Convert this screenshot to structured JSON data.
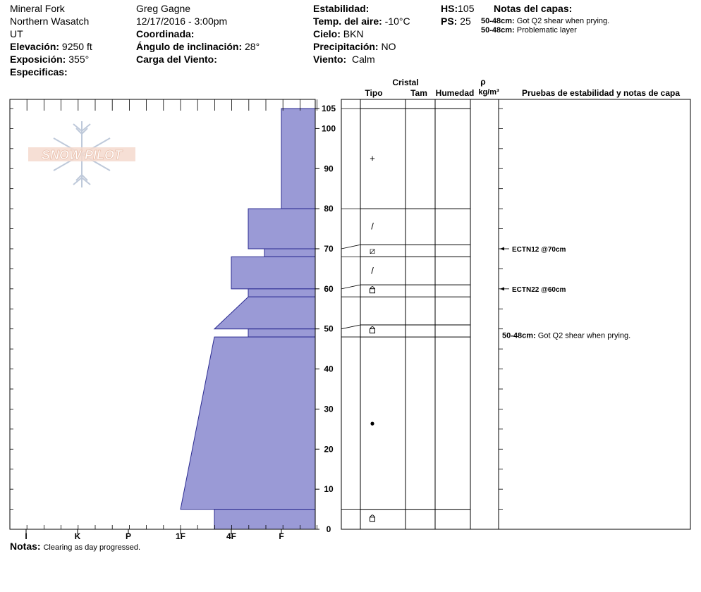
{
  "header": {
    "location": "Mineral Fork",
    "range": "Northern Wasatch",
    "state": "UT",
    "elevation_label": "Elevación:",
    "elevation_value": "9250 ft",
    "aspect_label": "Exposición:",
    "aspect_value": "355°",
    "specifics_label": "Especificas:",
    "observer": "Greg Gagne",
    "datetime": "12/17/2016 - 3:00pm",
    "coord_label": "Coordinada:",
    "slope_label": "Ángulo de inclinación:",
    "slope_value": "28°",
    "wind_load_label": "Carga del Viento:",
    "stability_label": "Estabilidad:",
    "air_temp_label": "Temp. del aire:",
    "air_temp_value": "-10°C",
    "sky_label": "Cielo:",
    "sky_value": "BKN",
    "precip_label": "Precipitación:",
    "precip_value": "NO",
    "wind_label": "Viento:",
    "wind_value": "Calm",
    "hs_label": "HS:",
    "hs_value": "105",
    "ps_label": "PS:",
    "ps_value": "25",
    "layer_notes_label": "Notas del capas:",
    "layer_notes": [
      {
        "range": "50-48cm:",
        "text": "Got Q2 shear when prying."
      },
      {
        "range": "50-48cm:",
        "text": "Problematic layer"
      }
    ]
  },
  "logo_text": "SNOW PILOT",
  "columns": {
    "cristal": "Cristal",
    "tipo": "Tipo",
    "tam": "Tam",
    "humedad": "Humedad",
    "rho": "ρ",
    "density_unit": "kg/m³",
    "tests": "Pruebas de estabilidad y notas de capa"
  },
  "notes_label": "Notas:",
  "notes_text": "Clearing as day progressed.",
  "colors": {
    "hardness_fill": "#9a9ad6",
    "hardness_stroke": "#2a2a90"
  },
  "chart_data": {
    "type": "snow-profile",
    "hardness_scale": [
      "I",
      "K",
      "P",
      "1F",
      "4F",
      "F"
    ],
    "depth_ticks": [
      0,
      10,
      20,
      30,
      40,
      50,
      60,
      70,
      80,
      90,
      100,
      105
    ],
    "ylim": [
      0,
      105
    ],
    "hardness_layers": [
      {
        "top": 105,
        "bottom": 80,
        "hardness": "F"
      },
      {
        "top": 80,
        "bottom": 70,
        "hardness": "4F-F"
      },
      {
        "top": 70,
        "bottom": 68,
        "hardness": "F+"
      },
      {
        "top": 68,
        "bottom": 60,
        "hardness": "4F"
      },
      {
        "top": 60,
        "bottom": 58,
        "hardness": "4F-F"
      },
      {
        "top": 58,
        "bottom": 50,
        "hardness_top": "4F-F",
        "hardness_bottom": "4F+1F"
      },
      {
        "top": 50,
        "bottom": 48,
        "hardness": "4F-F"
      },
      {
        "top": 48,
        "bottom": 5,
        "hardness_top": "4F+1F",
        "hardness_bottom": "1F"
      },
      {
        "top": 5,
        "bottom": 0,
        "hardness": "4F+1F"
      }
    ],
    "strat_layers": [
      {
        "top": 105,
        "bottom": 80,
        "symbol": "+"
      },
      {
        "top": 80,
        "bottom": 71,
        "symbol": "/"
      },
      {
        "top": 71,
        "bottom": 68,
        "symbol": "⧄"
      },
      {
        "top": 68,
        "bottom": 61,
        "symbol": "/"
      },
      {
        "top": 61,
        "bottom": 58,
        "symbol": "facet"
      },
      {
        "top": 58,
        "bottom": 51,
        "symbol": ""
      },
      {
        "top": 51,
        "bottom": 48,
        "symbol": "facet"
      },
      {
        "top": 48,
        "bottom": 5,
        "symbol": "●"
      },
      {
        "top": 5,
        "bottom": 0,
        "symbol": "facet"
      }
    ],
    "tests": [
      {
        "depth": 70,
        "label": "ECTN12 @70cm"
      },
      {
        "depth": 60,
        "label": "ECTN22 @60cm"
      }
    ],
    "layer_comments": [
      {
        "depth": 49,
        "range": "50-48cm:",
        "text": "Got Q2 shear when prying."
      }
    ]
  }
}
